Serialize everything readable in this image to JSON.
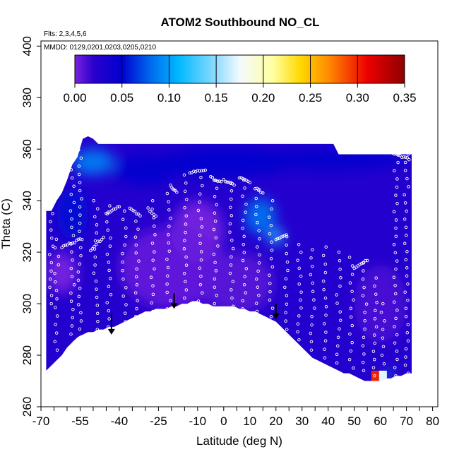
{
  "chart_data": {
    "type": "heatmap",
    "title": "ATOM2 Southbound NO_CL",
    "annotations": [
      "Flts: 2,3,4,5,6",
      "MMDD: 0129,0201,0203,0205,0210"
    ],
    "xlabel": "Latitude (deg N)",
    "ylabel": "Theta (C)",
    "xlim": [
      -70,
      82
    ],
    "ylim": [
      260,
      402
    ],
    "x_ticks": [
      -70,
      -55,
      -40,
      -25,
      -10,
      0,
      10,
      20,
      30,
      40,
      50,
      60,
      70,
      80
    ],
    "x_tick_labels": [
      "-70",
      "-55",
      "-40",
      "-25",
      "-10",
      "0",
      "10",
      "20",
      "30",
      "40",
      "50",
      "60",
      "70",
      "80"
    ],
    "x_minor_ticks": [
      -65,
      -60,
      -50,
      -45,
      -35,
      -30,
      -20,
      -15,
      -5,
      5,
      15,
      25,
      35,
      45,
      55,
      65,
      75
    ],
    "y_ticks": [
      260,
      280,
      300,
      320,
      340,
      360,
      380,
      400
    ],
    "y_tick_labels": [
      "260",
      "280",
      "300",
      "320",
      "340",
      "360",
      "380",
      "400"
    ],
    "colorbar": {
      "range": [
        0,
        0.35
      ],
      "ticks": [
        0.0,
        0.05,
        0.1,
        0.15,
        0.2,
        0.25,
        0.3,
        0.35
      ],
      "tick_labels": [
        "0.00",
        "0.05",
        "0.10",
        "0.15",
        "0.20",
        "0.25",
        "0.30",
        "0.35"
      ],
      "stops": [
        {
          "v": 0.0,
          "color": "#7a22e0"
        },
        {
          "v": 0.02,
          "color": "#2a00cc"
        },
        {
          "v": 0.05,
          "color": "#0000d0"
        },
        {
          "v": 0.08,
          "color": "#0068ee"
        },
        {
          "v": 0.11,
          "color": "#00b8ff"
        },
        {
          "v": 0.15,
          "color": "#90dcff"
        },
        {
          "v": 0.175,
          "color": "#f4faff"
        },
        {
          "v": 0.21,
          "color": "#ffffa0"
        },
        {
          "v": 0.24,
          "color": "#ffd800"
        },
        {
          "v": 0.27,
          "color": "#ff8800"
        },
        {
          "v": 0.31,
          "color": "#ee0000"
        },
        {
          "v": 0.35,
          "color": "#8e0000"
        }
      ]
    },
    "curtain": {
      "lats": [
        -68,
        -66,
        -64,
        -62,
        -60,
        -58,
        -56,
        -54,
        -52,
        -50,
        -48,
        -46,
        -44,
        -42,
        -40,
        -38,
        -36,
        -34,
        -32,
        -30,
        -28,
        -26,
        -24,
        -22,
        -20,
        -18,
        -16,
        -14,
        -12,
        -10,
        -8,
        -6,
        -4,
        -2,
        0,
        2,
        4,
        6,
        8,
        10,
        12,
        14,
        16,
        18,
        20,
        22,
        24,
        26,
        28,
        30,
        32,
        34,
        36,
        38,
        40,
        42,
        44,
        46,
        48,
        50,
        52,
        54,
        56,
        58,
        60,
        62,
        64,
        66,
        68,
        70,
        72
      ],
      "bottom": [
        274,
        276,
        278,
        280,
        283,
        285,
        287,
        288,
        289,
        289,
        290,
        290,
        291,
        291,
        292,
        293,
        294,
        295,
        296,
        297,
        297,
        298,
        298,
        298,
        299,
        299,
        300,
        300,
        301,
        301,
        300,
        300,
        299,
        299,
        299,
        299,
        299,
        298,
        298,
        297,
        297,
        296,
        295,
        294,
        293,
        291,
        289,
        287,
        285,
        283,
        281,
        279,
        278,
        277,
        276,
        275,
        274,
        273,
        273,
        272,
        271,
        270,
        270,
        270,
        270,
        271,
        271,
        272,
        272,
        273,
        273
      ],
      "top": [
        336,
        336,
        340,
        343,
        348,
        354,
        357,
        364,
        365,
        364,
        362,
        362,
        362,
        362,
        362,
        362,
        362,
        362,
        362,
        362,
        362,
        362,
        362,
        362,
        362,
        362,
        362,
        362,
        362,
        362,
        362,
        362,
        362,
        362,
        362,
        362,
        362,
        362,
        362,
        362,
        362,
        362,
        362,
        362,
        362,
        362,
        362,
        362,
        362,
        362,
        362,
        362,
        362,
        362,
        362,
        362,
        358,
        358,
        358,
        358,
        358,
        358,
        358,
        358,
        358,
        358,
        358,
        358,
        358,
        358,
        358
      ]
    },
    "blobs": [
      {
        "lat": -50,
        "theta": 355,
        "rlat": 8,
        "rtheta": 5,
        "value": 0.09
      },
      {
        "lat": -30,
        "theta": 352,
        "rlat": 12,
        "rtheta": 6,
        "value": 0.05
      },
      {
        "lat": 0,
        "theta": 355,
        "rlat": 25,
        "rtheta": 6,
        "value": 0.045
      },
      {
        "lat": 40,
        "theta": 356,
        "rlat": 30,
        "rtheta": 4,
        "value": 0.045
      },
      {
        "lat": -58,
        "theta": 335,
        "rlat": 6,
        "rtheta": 10,
        "value": 0.055
      },
      {
        "lat": 14,
        "theta": 334,
        "rlat": 6,
        "rtheta": 7,
        "value": 0.085
      },
      {
        "lat": 20,
        "theta": 326,
        "rlat": 3,
        "rtheta": 3,
        "value": 0.12
      },
      {
        "lat": -10,
        "theta": 328,
        "rlat": 10,
        "rtheta": 12,
        "value": 0.0
      },
      {
        "lat": -20,
        "theta": 314,
        "rlat": 20,
        "rtheta": 16,
        "value": 0.005
      },
      {
        "lat": 5,
        "theta": 308,
        "rlat": 14,
        "rtheta": 12,
        "value": 0.008
      },
      {
        "lat": -62,
        "theta": 312,
        "rlat": 6,
        "rtheta": 8,
        "value": 0.0
      },
      {
        "lat": 60,
        "theta": 300,
        "rlat": 10,
        "rtheta": 15,
        "value": 0.012
      },
      {
        "lat": 58,
        "theta": 272,
        "rlat": 1.5,
        "rtheta": 2,
        "value": 0.3
      },
      {
        "lat": 61,
        "theta": 272,
        "rlat": 1.5,
        "rtheta": 2,
        "value": 0.17
      },
      {
        "lat": 63,
        "theta": 272,
        "rlat": 1.2,
        "rtheta": 2,
        "value": 0.12
      }
    ],
    "obs_segments": [
      {
        "lat0": -62,
        "lat1": -55,
        "theta0": 322,
        "theta1": 325
      },
      {
        "lat0": -51,
        "lat1": -46,
        "theta0": 321,
        "theta1": 326
      },
      {
        "lat0": -45,
        "lat1": -40,
        "theta0": 335,
        "theta1": 338
      },
      {
        "lat0": -36,
        "lat1": -32,
        "theta0": 337,
        "theta1": 334
      },
      {
        "lat0": -29,
        "lat1": -26,
        "theta0": 337,
        "theta1": 334
      },
      {
        "lat0": -20,
        "lat1": -18,
        "theta0": 345,
        "theta1": 343
      },
      {
        "lat0": -13,
        "lat1": -7,
        "theta0": 351,
        "theta1": 352
      },
      {
        "lat0": -5,
        "lat1": -1,
        "theta0": 349,
        "theta1": 347
      },
      {
        "lat0": 0,
        "lat1": 4,
        "theta0": 348,
        "theta1": 346
      },
      {
        "lat0": 6,
        "lat1": 10,
        "theta0": 349,
        "theta1": 347
      },
      {
        "lat0": 12,
        "lat1": 15,
        "theta0": 345,
        "theta1": 343
      },
      {
        "lat0": 20,
        "lat1": 24,
        "theta0": 325,
        "theta1": 327
      },
      {
        "lat0": 50,
        "lat1": 55,
        "theta0": 314,
        "theta1": 317
      },
      {
        "lat0": 64,
        "lat1": 71,
        "theta0": 359,
        "theta1": 356
      }
    ],
    "obs_profiles": [
      {
        "lat": -66,
        "theta0": 300,
        "theta1": 335
      },
      {
        "lat": -64,
        "theta0": 282,
        "theta1": 325
      },
      {
        "lat": -58,
        "theta0": 285,
        "theta1": 352
      },
      {
        "lat": -55,
        "theta0": 287,
        "theta1": 366
      },
      {
        "lat": -49,
        "theta0": 290,
        "theta1": 340
      },
      {
        "lat": -44,
        "theta0": 291,
        "theta1": 338
      },
      {
        "lat": -38,
        "theta0": 293,
        "theta1": 336
      },
      {
        "lat": -33,
        "theta0": 295,
        "theta1": 332
      },
      {
        "lat": -27,
        "theta0": 297,
        "theta1": 340
      },
      {
        "lat": -21,
        "theta0": 298,
        "theta1": 346
      },
      {
        "lat": -15,
        "theta0": 299,
        "theta1": 350
      },
      {
        "lat": -9,
        "theta0": 301,
        "theta1": 349
      },
      {
        "lat": -3,
        "theta0": 300,
        "theta1": 348
      },
      {
        "lat": 3,
        "theta0": 299,
        "theta1": 347
      },
      {
        "lat": 8,
        "theta0": 298,
        "theta1": 348
      },
      {
        "lat": 13,
        "theta0": 297,
        "theta1": 344
      },
      {
        "lat": 18,
        "theta0": 295,
        "theta1": 340
      },
      {
        "lat": 24,
        "theta0": 290,
        "theta1": 326
      },
      {
        "lat": 29,
        "theta0": 286,
        "theta1": 323
      },
      {
        "lat": 34,
        "theta0": 282,
        "theta1": 321
      },
      {
        "lat": 39,
        "theta0": 279,
        "theta1": 322
      },
      {
        "lat": 44,
        "theta0": 277,
        "theta1": 320
      },
      {
        "lat": 49,
        "theta0": 275,
        "theta1": 318
      },
      {
        "lat": 54,
        "theta0": 274,
        "theta1": 316
      },
      {
        "lat": 58,
        "theta0": 272,
        "theta1": 310
      },
      {
        "lat": 61,
        "theta0": 270,
        "theta1": 300
      },
      {
        "lat": 66,
        "theta0": 272,
        "theta1": 358
      },
      {
        "lat": 70,
        "theta0": 273,
        "theta1": 358
      }
    ],
    "arrows": [
      {
        "lat": -43,
        "theta_top": 296,
        "theta_tip": 288
      },
      {
        "lat": -19,
        "theta_top": 304,
        "theta_tip": 298
      },
      {
        "lat": 20,
        "theta_top": 300,
        "theta_tip": 294
      }
    ]
  }
}
